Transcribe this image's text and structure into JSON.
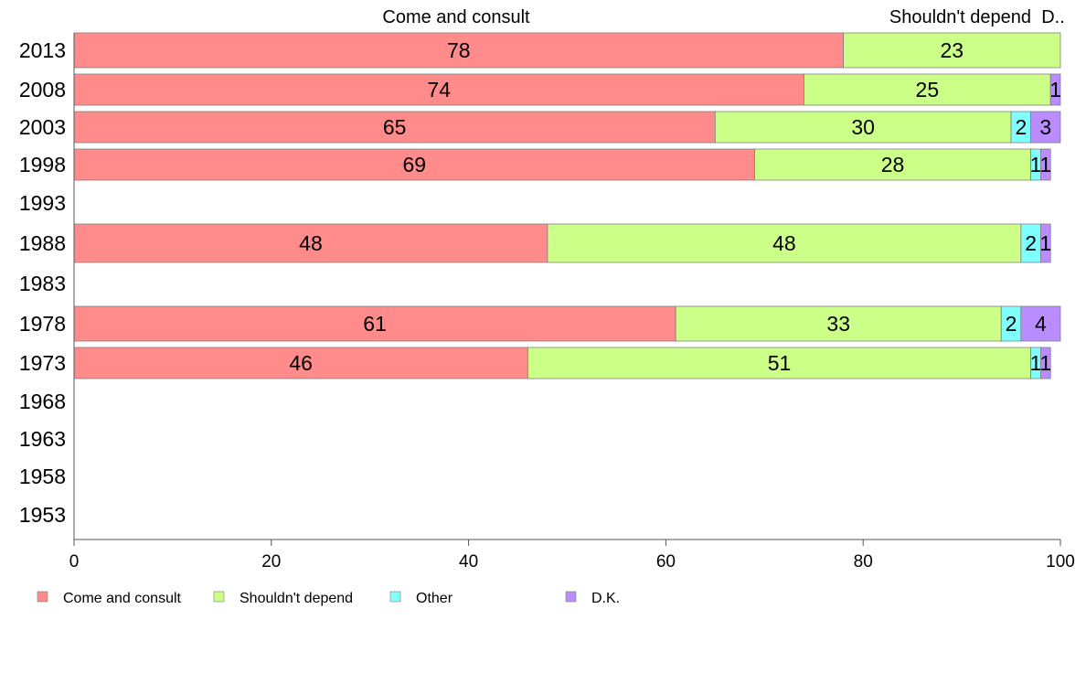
{
  "chart_data": {
    "type": "bar",
    "orientation": "horizontal",
    "stacked": true,
    "categories": [
      "2013",
      "2008",
      "2003",
      "1998",
      "1993",
      "1988",
      "1983",
      "1978",
      "1973",
      "1968",
      "1963",
      "1958",
      "1953"
    ],
    "series": [
      {
        "name": "Come and consult",
        "color": "#ff8b8b",
        "values": [
          78,
          74,
          65,
          69,
          null,
          48,
          null,
          61,
          46,
          null,
          null,
          null,
          null
        ]
      },
      {
        "name": "Shouldn't depend",
        "color": "#ccff88",
        "values": [
          23,
          25,
          30,
          28,
          null,
          48,
          null,
          33,
          51,
          null,
          null,
          null,
          null
        ]
      },
      {
        "name": "Other",
        "color": "#80ffff",
        "values": [
          0,
          0,
          2,
          1,
          null,
          2,
          null,
          2,
          1,
          null,
          null,
          null,
          null
        ]
      },
      {
        "name": "D.K.",
        "color": "#b98cff",
        "values": [
          0,
          1,
          3,
          1,
          null,
          1,
          null,
          4,
          1,
          null,
          null,
          null,
          null
        ]
      }
    ],
    "top_labels": [
      "Come and consult",
      "Shouldn't depend",
      "D.."
    ],
    "xlim": [
      0,
      100
    ],
    "xticks": [
      "0",
      "20",
      "40",
      "60",
      "80",
      "100"
    ],
    "grid": false,
    "legend_position": "bottom-left"
  }
}
